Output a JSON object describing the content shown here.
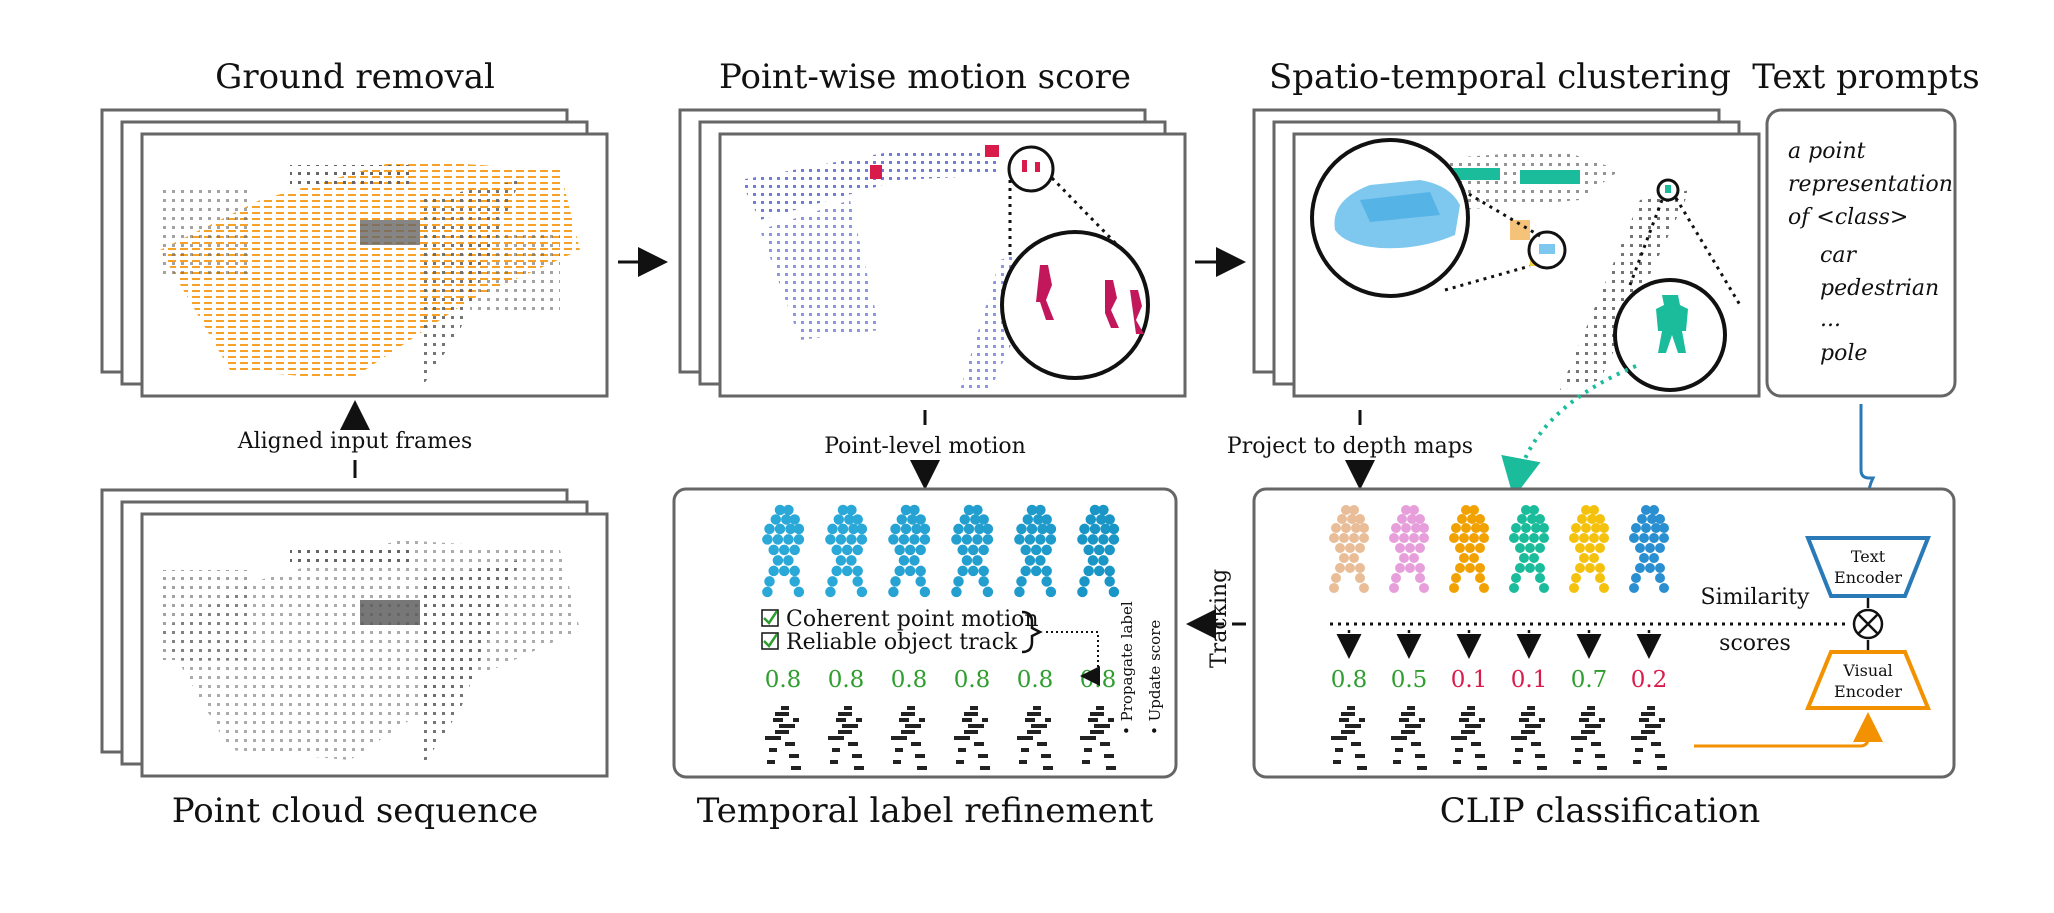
{
  "titles": {
    "ground_removal": "Ground removal",
    "motion_score": "Point-wise motion score",
    "clustering": "Spatio-temporal clustering",
    "text_prompts": "Text prompts",
    "point_cloud_sequence": "Point cloud sequence",
    "temporal_refinement": "Temporal label refinement",
    "clip_classification": "CLIP classification"
  },
  "arrows": {
    "aligned_input_frames": "Aligned input frames",
    "point_level_motion": "Point-level motion",
    "project_to_depth_maps": "Project to depth maps",
    "tracking": "Tracking"
  },
  "prompt_box": {
    "line1": "a point",
    "line2": "representation",
    "line3": "of <class>",
    "classes": [
      "car",
      "pedestrian",
      "...",
      "pole"
    ]
  },
  "refinement": {
    "check1": "Coherent point motion",
    "check2": "Reliable object track",
    "side1": "• Propagate label",
    "side2": "• Update score",
    "scores": [
      "0.8",
      "0.8",
      "0.8",
      "0.8",
      "0.8",
      "0.8"
    ]
  },
  "clip": {
    "text_encoder_line1": "Text",
    "text_encoder_line2": "Encoder",
    "visual_encoder_line1": "Visual",
    "visual_encoder_line2": "Encoder",
    "similarity_line1": "Similarity",
    "similarity_line2": "scores",
    "scores": [
      "0.8",
      "0.5",
      "0.1",
      "0.1",
      "0.7",
      "0.2"
    ]
  },
  "colors": {
    "orange": "#f39200",
    "teal": "#1abc9c",
    "blue": "#2a7ab8",
    "green": "#2e9e2e",
    "red": "#d81b4a",
    "frame": "#666666"
  }
}
